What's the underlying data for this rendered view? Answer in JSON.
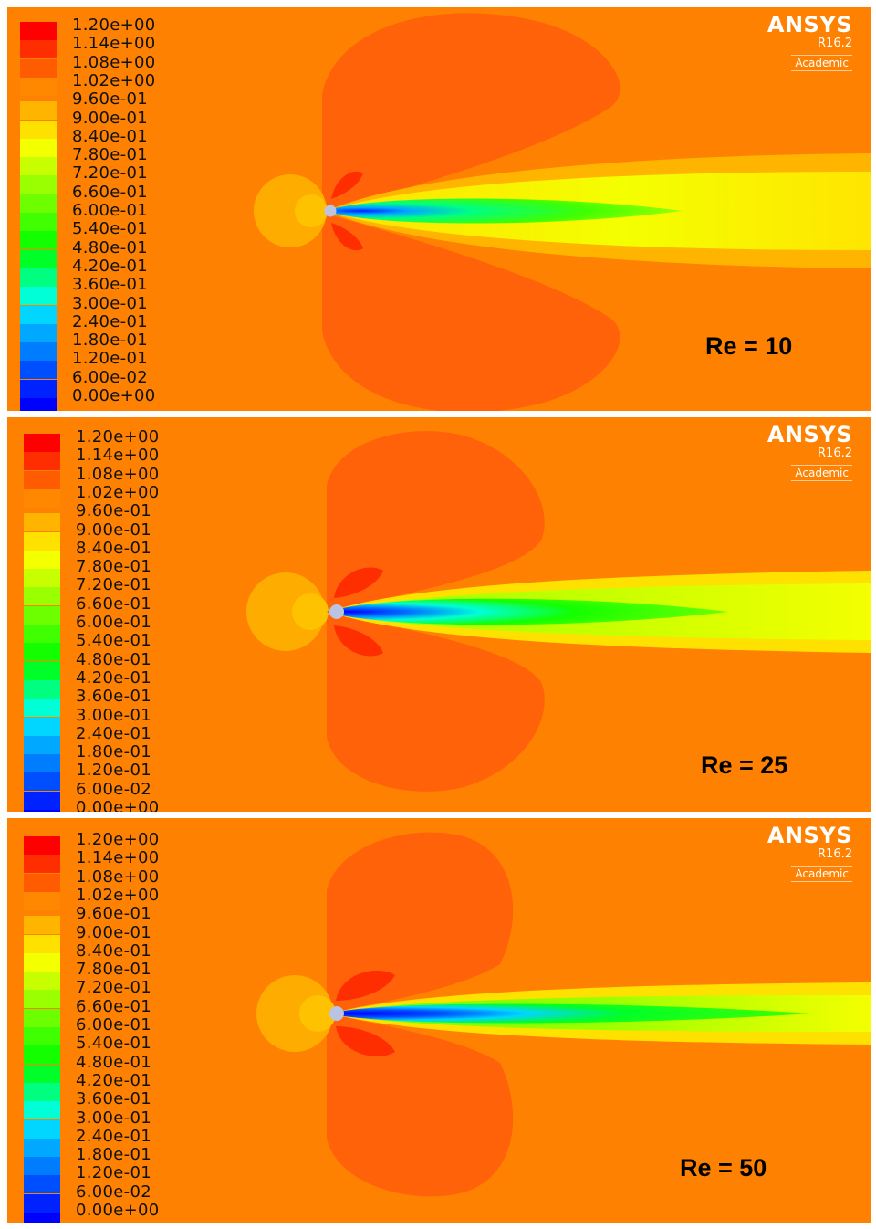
{
  "legend": {
    "labels": [
      "1.20e+00",
      "1.14e+00",
      "1.08e+00",
      "1.02e+00",
      "9.60e-01",
      "9.00e-01",
      "8.40e-01",
      "7.80e-01",
      "7.20e-01",
      "6.60e-01",
      "6.00e-01",
      "5.40e-01",
      "4.80e-01",
      "4.20e-01",
      "3.60e-01",
      "3.00e-01",
      "2.40e-01",
      "1.80e-01",
      "1.20e-01",
      "6.00e-02",
      "0.00e+00"
    ],
    "colors": [
      "#ff0000",
      "#ff2e00",
      "#ff5b00",
      "#ff8800",
      "#ffb500",
      "#ffe100",
      "#f4ff00",
      "#c7ff00",
      "#9aff00",
      "#6dff00",
      "#40ff00",
      "#13ff00",
      "#00ff29",
      "#00ff80",
      "#00ffd6",
      "#00d6ff",
      "#00a9ff",
      "#007cff",
      "#004fff",
      "#0022ff",
      "#0000ff"
    ]
  },
  "brand": {
    "name": "ANSYS",
    "version": "R16.2",
    "edition": "Academic"
  },
  "panels": [
    {
      "re_label": "Re = 10"
    },
    {
      "re_label": "Re = 25"
    },
    {
      "re_label": "Re = 50"
    }
  ],
  "colors": {
    "background": "#fe8102",
    "lobe": "#ff6208",
    "upstream_outer": "#ffac00",
    "upstream_inner": "#ffc200",
    "cylinder": "#b9c4e2"
  }
}
